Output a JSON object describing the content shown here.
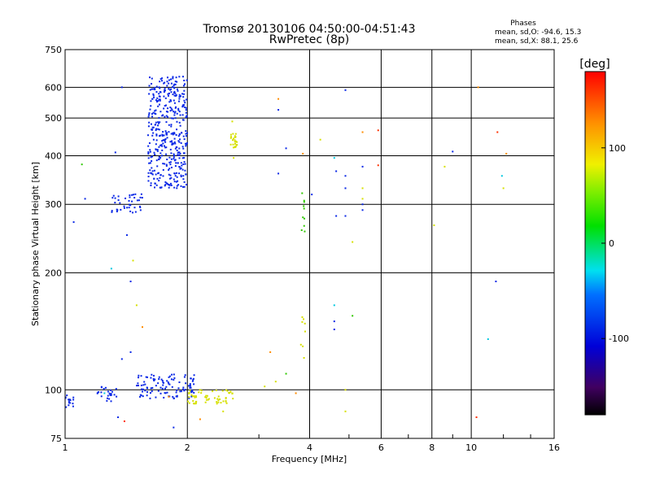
{
  "chart_data": {
    "type": "scatter",
    "title": "Tromsø 20130106 04:50:00-04:51:43",
    "subtitle": "RwPretec (8p)",
    "xlabel": "Frequency [MHz]",
    "ylabel": "Stationary phase Virtual Height [km]",
    "x_scale": "log",
    "y_scale": "log",
    "xlim": [
      1,
      16
    ],
    "ylim": [
      75,
      750
    ],
    "x_ticks": [
      1,
      2,
      4,
      6,
      8,
      10,
      16
    ],
    "x_tick_labels": [
      "1",
      "2",
      "4",
      "6",
      "8",
      "10",
      "16"
    ],
    "y_ticks": [
      75,
      100,
      200,
      300,
      400,
      500,
      600,
      750
    ],
    "y_tick_labels": [
      "75",
      "100",
      "200",
      "300",
      "400",
      "500",
      "600",
      "750"
    ],
    "grid": true,
    "stats": {
      "heading": "Phases",
      "line_o": "mean, sd,O: -94.6, 15.3",
      "line_x": "mean, sd,X:  88.1, 25.6"
    },
    "colorbar": {
      "label": "[deg]",
      "range": [
        -180,
        180
      ],
      "ticks": [
        100,
        0,
        -100
      ],
      "tick_labels": [
        "100",
        "0",
        "-100"
      ]
    },
    "colors": {
      "blue": "#0a28e6",
      "yellow": "#d6e000",
      "green": "#30c800",
      "red": "#ff3000"
    },
    "clusters": [
      {
        "x": [
          1.6,
          2.0
        ],
        "y": [
          330,
          640
        ],
        "n": 420,
        "color": "blue"
      },
      {
        "x": [
          1.3,
          1.55
        ],
        "y": [
          285,
          320
        ],
        "n": 40,
        "color": "blue"
      },
      {
        "x": [
          1.0,
          1.05
        ],
        "y": [
          90,
          97
        ],
        "n": 15,
        "color": "blue"
      },
      {
        "x": [
          1.2,
          1.35
        ],
        "y": [
          93,
          102
        ],
        "n": 25,
        "color": "blue"
      },
      {
        "x": [
          1.5,
          2.1
        ],
        "y": [
          95,
          110
        ],
        "n": 110,
        "color": "blue"
      },
      {
        "x": [
          2.0,
          2.6
        ],
        "y": [
          92,
          100
        ],
        "n": 60,
        "color": "yellow"
      },
      {
        "x": [
          2.55,
          2.65
        ],
        "y": [
          420,
          460
        ],
        "n": 25,
        "color": "yellow"
      },
      {
        "x": [
          3.8,
          3.9
        ],
        "y": [
          240,
          330
        ],
        "n": 10,
        "color": "green"
      },
      {
        "x": [
          3.8,
          3.9
        ],
        "y": [
          120,
          160
        ],
        "n": 8,
        "color": "yellow"
      }
    ],
    "points": [
      {
        "x": 1.38,
        "y": 600,
        "color": "blue"
      },
      {
        "x": 1.33,
        "y": 408,
        "color": "blue"
      },
      {
        "x": 1.1,
        "y": 380,
        "color": "green"
      },
      {
        "x": 1.12,
        "y": 310,
        "color": "blue"
      },
      {
        "x": 1.42,
        "y": 250,
        "color": "blue"
      },
      {
        "x": 1.47,
        "y": 215,
        "color": "yellow"
      },
      {
        "x": 1.3,
        "y": 205,
        "color": "cyan"
      },
      {
        "x": 1.45,
        "y": 190,
        "color": "blue"
      },
      {
        "x": 1.5,
        "y": 165,
        "color": "yellow"
      },
      {
        "x": 1.38,
        "y": 120,
        "color": "blue"
      },
      {
        "x": 1.45,
        "y": 125,
        "color": "blue"
      },
      {
        "x": 1.35,
        "y": 85,
        "color": "blue"
      },
      {
        "x": 1.4,
        "y": 83,
        "color": "red"
      },
      {
        "x": 1.85,
        "y": 80,
        "color": "blue"
      },
      {
        "x": 3.35,
        "y": 560,
        "color": "orange"
      },
      {
        "x": 3.35,
        "y": 525,
        "color": "blue"
      },
      {
        "x": 3.35,
        "y": 360,
        "color": "blue"
      },
      {
        "x": 3.5,
        "y": 418,
        "color": "blue"
      },
      {
        "x": 3.85,
        "y": 405,
        "color": "orange"
      },
      {
        "x": 4.05,
        "y": 318,
        "color": "blue"
      },
      {
        "x": 4.6,
        "y": 395,
        "color": "cyan"
      },
      {
        "x": 4.9,
        "y": 590,
        "color": "blue"
      },
      {
        "x": 4.65,
        "y": 365,
        "color": "blue"
      },
      {
        "x": 4.9,
        "y": 355,
        "color": "blue"
      },
      {
        "x": 4.9,
        "y": 330,
        "color": "blue"
      },
      {
        "x": 4.65,
        "y": 280,
        "color": "blue"
      },
      {
        "x": 4.9,
        "y": 280,
        "color": "blue"
      },
      {
        "x": 5.4,
        "y": 300,
        "color": "blue"
      },
      {
        "x": 5.4,
        "y": 290,
        "color": "blue"
      },
      {
        "x": 5.4,
        "y": 375,
        "color": "blue"
      },
      {
        "x": 5.4,
        "y": 460,
        "color": "orange"
      },
      {
        "x": 5.9,
        "y": 465,
        "color": "red"
      },
      {
        "x": 5.9,
        "y": 378,
        "color": "red"
      },
      {
        "x": 5.4,
        "y": 330,
        "color": "yellow"
      },
      {
        "x": 5.4,
        "y": 310,
        "color": "yellow"
      },
      {
        "x": 5.1,
        "y": 240,
        "color": "yellow"
      },
      {
        "x": 4.6,
        "y": 165,
        "color": "cyan"
      },
      {
        "x": 4.6,
        "y": 150,
        "color": "blue"
      },
      {
        "x": 4.6,
        "y": 143,
        "color": "blue"
      },
      {
        "x": 5.1,
        "y": 155,
        "color": "green"
      },
      {
        "x": 4.9,
        "y": 100,
        "color": "yellow"
      },
      {
        "x": 4.9,
        "y": 88,
        "color": "yellow"
      },
      {
        "x": 3.2,
        "y": 125,
        "color": "orange"
      },
      {
        "x": 3.5,
        "y": 110,
        "color": "green"
      },
      {
        "x": 3.3,
        "y": 105,
        "color": "yellow"
      },
      {
        "x": 3.1,
        "y": 102,
        "color": "yellow"
      },
      {
        "x": 3.7,
        "y": 98,
        "color": "orange"
      },
      {
        "x": 4.25,
        "y": 440,
        "color": "yellow"
      },
      {
        "x": 8.1,
        "y": 265,
        "color": "yellow"
      },
      {
        "x": 8.6,
        "y": 375,
        "color": "yellow"
      },
      {
        "x": 9.0,
        "y": 410,
        "color": "blue"
      },
      {
        "x": 10.4,
        "y": 600,
        "color": "orange"
      },
      {
        "x": 10.3,
        "y": 85,
        "color": "red"
      },
      {
        "x": 11.6,
        "y": 460,
        "color": "red"
      },
      {
        "x": 12.2,
        "y": 405,
        "color": "orange"
      },
      {
        "x": 11.9,
        "y": 355,
        "color": "cyan"
      },
      {
        "x": 12.0,
        "y": 330,
        "color": "yellow"
      },
      {
        "x": 11.5,
        "y": 190,
        "color": "blue"
      },
      {
        "x": 11.0,
        "y": 135,
        "color": "cyan"
      },
      {
        "x": 2.6,
        "y": 395,
        "color": "yellow"
      },
      {
        "x": 2.58,
        "y": 490,
        "color": "yellow"
      },
      {
        "x": 1.05,
        "y": 270,
        "color": "blue"
      },
      {
        "x": 1.55,
        "y": 145,
        "color": "orange"
      },
      {
        "x": 1.8,
        "y": 96,
        "color": "orange"
      },
      {
        "x": 1.25,
        "y": 98,
        "color": "cyan"
      },
      {
        "x": 2.45,
        "y": 88,
        "color": "yellow"
      },
      {
        "x": 2.15,
        "y": 84,
        "color": "orange"
      }
    ]
  }
}
